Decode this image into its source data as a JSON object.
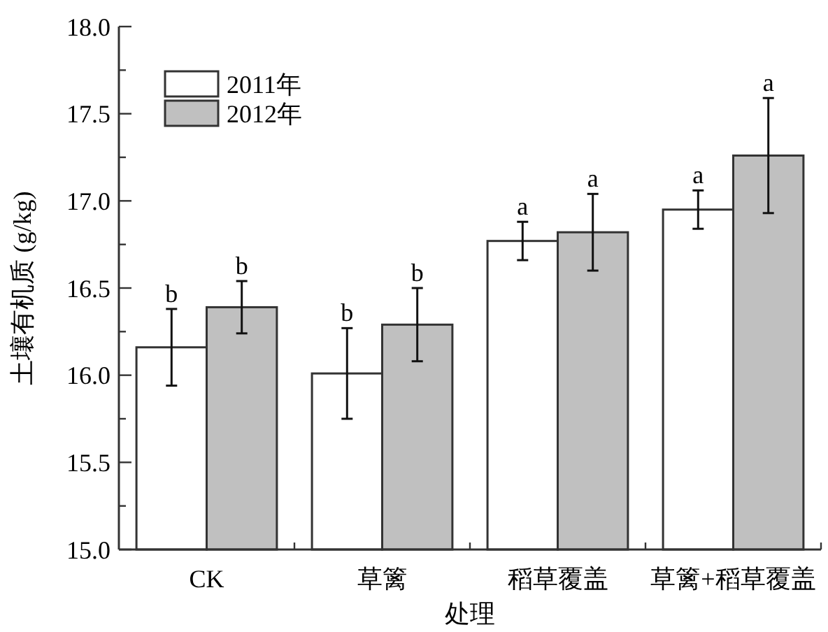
{
  "chart_data": {
    "type": "bar",
    "xlabel": "处理",
    "ylabel": "土壤有机质 (g/kg)",
    "categories": [
      "CK",
      "草篱",
      "稻草覆盖",
      "草篱+稻草覆盖"
    ],
    "series": [
      {
        "name": "2011年",
        "color": "#ffffff",
        "values": [
          16.16,
          16.01,
          16.77,
          16.95
        ],
        "errors": [
          0.22,
          0.26,
          0.11,
          0.11
        ]
      },
      {
        "name": "2012年",
        "color": "#c0c0c0",
        "values": [
          16.39,
          16.29,
          16.82,
          17.26
        ],
        "errors": [
          0.15,
          0.21,
          0.22,
          0.33
        ]
      }
    ],
    "ylim": [
      15.0,
      18.0
    ],
    "yticks": [
      {
        "value": 15,
        "label": "15.0"
      },
      {
        "value": 15.5,
        "label": "15.5"
      },
      {
        "value": 16,
        "label": "16.0"
      },
      {
        "value": 16.5,
        "label": "16.5"
      },
      {
        "value": 17,
        "label": "17.0"
      },
      {
        "value": 17.5,
        "label": "17.5"
      },
      {
        "value": 18,
        "label": "18.0"
      }
    ],
    "legend": "top left",
    "grid": false,
    "annotations": [
      "b",
      "b",
      "b",
      "b",
      "a",
      "a",
      "a",
      "a"
    ]
  }
}
